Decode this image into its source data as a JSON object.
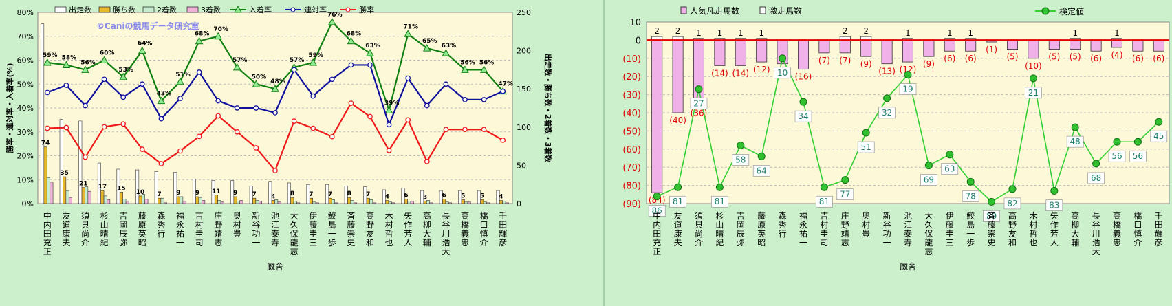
{
  "chart_data": [
    {
      "type": "bar",
      "categories": [
        "中内田 充正",
        "友道 康夫",
        "須貝 尚介",
        "杉山 晴紀",
        "吉岡 辰弥",
        "藤原 英昭",
        "森 秀行",
        "福永 祐一",
        "吉村 圭司",
        "庄野 靖志",
        "奥村 豊",
        "新谷 功一",
        "池江 泰寿",
        "大久保 龍志",
        "伊藤 圭三",
        "鮫島 一歩",
        "斉藤 崇史",
        "高野 友和",
        "木村 哲也",
        "矢作 芳人",
        "高柳 大輔",
        "長谷川 浩大",
        "高橋 義忠",
        "橋口 慎介",
        "千田 輝彦"
      ],
      "xlabel": "厩舎",
      "ylabel": "勝率・連対率・入着率(%)",
      "y2label": "出走数・勝ち数・2着数・3着数",
      "ylim": [
        0,
        80
      ],
      "y2lim": [
        0,
        250
      ],
      "yticks": [
        "0%",
        "10%",
        "20%",
        "30%",
        "40%",
        "50%",
        "60%",
        "70%",
        "80%"
      ],
      "y2ticks": [
        "0",
        "50",
        "100",
        "150",
        "200",
        "250"
      ],
      "watermark": "©Caniの競馬データ研究室",
      "series": [
        {
          "name": "出走数",
          "kind": "bar",
          "axis": "right",
          "color": "#ffffff",
          "values": [
            235,
            110,
            108,
            53,
            45,
            44,
            42,
            41,
            32,
            30,
            30,
            23,
            29,
            27,
            25,
            25,
            23,
            22,
            18,
            20,
            17,
            17,
            17,
            17,
            17
          ]
        },
        {
          "name": "勝ち数",
          "kind": "bar",
          "axis": "right",
          "color": "#e8b828",
          "values": [
            74,
            35,
            21,
            17,
            15,
            10,
            7,
            9,
            9,
            11,
            9,
            7,
            4,
            8,
            7,
            7,
            8,
            7,
            4,
            6,
            3,
            6,
            5,
            5,
            4
          ]
        },
        {
          "name": "2着数",
          "kind": "bar",
          "axis": "right",
          "color": "#c8ecd0",
          "values": [
            34,
            17,
            22,
            10,
            6,
            12,
            7,
            9,
            8,
            4,
            3,
            4,
            5,
            3,
            2,
            5,
            4,
            5,
            2,
            3,
            4,
            2,
            2,
            2,
            3
          ]
        },
        {
          "name": "3着数",
          "kind": "bar",
          "axis": "right",
          "color": "#f0b0d8",
          "values": [
            28,
            8,
            16,
            5,
            3,
            6,
            1,
            3,
            4,
            2,
            4,
            3,
            2,
            1,
            1,
            1,
            1,
            1,
            1,
            3,
            1,
            1,
            2,
            1,
            1
          ]
        },
        {
          "name": "入着率",
          "kind": "line",
          "axis": "left",
          "color": "#108010",
          "marker": "triangle",
          "values": [
            59,
            58,
            56,
            60,
            53,
            64,
            43,
            51,
            68,
            70,
            57,
            50,
            48,
            57,
            59,
            76,
            68,
            63,
            39,
            71,
            65,
            63,
            56,
            56,
            47
          ]
        },
        {
          "name": "連対率",
          "kind": "line",
          "axis": "left",
          "color": "#1010a0",
          "marker": "circle",
          "values": [
            46.5,
            49.5,
            41,
            52,
            44.5,
            50,
            35.5,
            44,
            55,
            43,
            40,
            40,
            38,
            56,
            45,
            52,
            58,
            58,
            33,
            52.5,
            41,
            50,
            43.5,
            43.5,
            47
          ]
        },
        {
          "name": "勝率",
          "kind": "line",
          "axis": "left",
          "color": "#f01818",
          "marker": "circle",
          "values": [
            31.5,
            31.8,
            19.4,
            32.1,
            33.3,
            22.7,
            16.7,
            22,
            28.1,
            36.7,
            30,
            23.3,
            13.8,
            34.5,
            31.5,
            28,
            42,
            36.4,
            22.2,
            35,
            17.6,
            31,
            31,
            31,
            26.5
          ]
        }
      ],
      "labels_row1": [
        "74",
        "35",
        "21",
        "17",
        "15",
        "10",
        "7",
        "9",
        "9",
        "11",
        "9",
        "7",
        "4",
        "8",
        "7",
        "7",
        "8",
        "7",
        "4",
        "6",
        "3",
        "6",
        "5",
        "5",
        "4"
      ],
      "labels_pct": [
        "59%",
        "58%",
        "56%",
        "60%",
        "53%",
        "64%",
        "43%",
        "51%",
        "68%",
        "70%",
        "57%",
        "50%",
        "48%",
        "57%",
        "59%",
        "76%",
        "68%",
        "63%",
        "39%",
        "71%",
        "65%",
        "63%",
        "56%",
        "56%",
        "47%"
      ]
    },
    {
      "type": "bar",
      "categories": [
        "中内田 充正",
        "友道 康夫",
        "須貝 尚介",
        "杉山 晴紀",
        "吉岡 辰弥",
        "藤原 英昭",
        "森 秀行",
        "福永 祐一",
        "吉村 圭司",
        "庄野 靖志",
        "奥村 豊",
        "新谷 功一",
        "池江 泰寿",
        "大久保 龍志",
        "伊藤 圭三",
        "鮫島 一歩",
        "斉藤 崇史",
        "高野 友和",
        "木村 哲也",
        "矢作 芳人",
        "高柳 大輔",
        "長谷川 浩大",
        "高橋 義忠",
        "橋口 慎介",
        "千田 輝彦"
      ],
      "xlabel": "厩舎",
      "ylim": [
        -90,
        10
      ],
      "yticks": [
        "10",
        "0",
        "(10)",
        "(20)",
        "(30)",
        "(40)",
        "(50)",
        "(60)",
        "(70)",
        "(80)",
        "(90)"
      ],
      "series": [
        {
          "name": "人気凡走馬数",
          "kind": "bar",
          "color": "#f0b0e8",
          "values": [
            -84,
            -40,
            -36,
            -14,
            -14,
            -12,
            -13,
            -16,
            -7,
            -7,
            -9,
            -13,
            -12,
            -9,
            -6,
            -6,
            -1,
            -5,
            -10,
            -5,
            -5,
            -6,
            -4,
            -6,
            -6
          ]
        },
        {
          "name": "激走馬数",
          "kind": "bar",
          "color": "#ffffff",
          "values": [
            2,
            2,
            1,
            1,
            1,
            1,
            0,
            0,
            0,
            2,
            2,
            0,
            1,
            0,
            1,
            1,
            0,
            0,
            0,
            0,
            1,
            0,
            1,
            0,
            0
          ]
        },
        {
          "name": "検定値",
          "kind": "line",
          "color": "#30d030",
          "values": [
            86,
            81,
            27,
            81,
            58,
            64,
            10,
            34,
            81,
            77,
            51,
            32,
            19,
            69,
            63,
            78,
            89,
            82,
            21,
            83,
            48,
            68,
            56,
            56,
            45
          ]
        }
      ],
      "pos_labels": [
        "2",
        "2",
        "1",
        "1",
        "1",
        "1",
        "",
        "",
        "",
        "2",
        "2",
        "",
        "1",
        "",
        "1",
        "1",
        "",
        "",
        "",
        "",
        "1",
        "",
        "1",
        "",
        ""
      ],
      "neg_labels": [
        "(84)",
        "(40)",
        "(36)",
        "(14)",
        "(14)",
        "(12)",
        "(13)",
        "(16)",
        "(7)",
        "(7)",
        "(9)",
        "(13)",
        "(12)",
        "(9)",
        "(6)",
        "(6)",
        "(1)",
        "(5)",
        "(10)",
        "(5)",
        "(5)",
        "(6)",
        "(4)",
        "(6)",
        "(6)"
      ]
    }
  ]
}
